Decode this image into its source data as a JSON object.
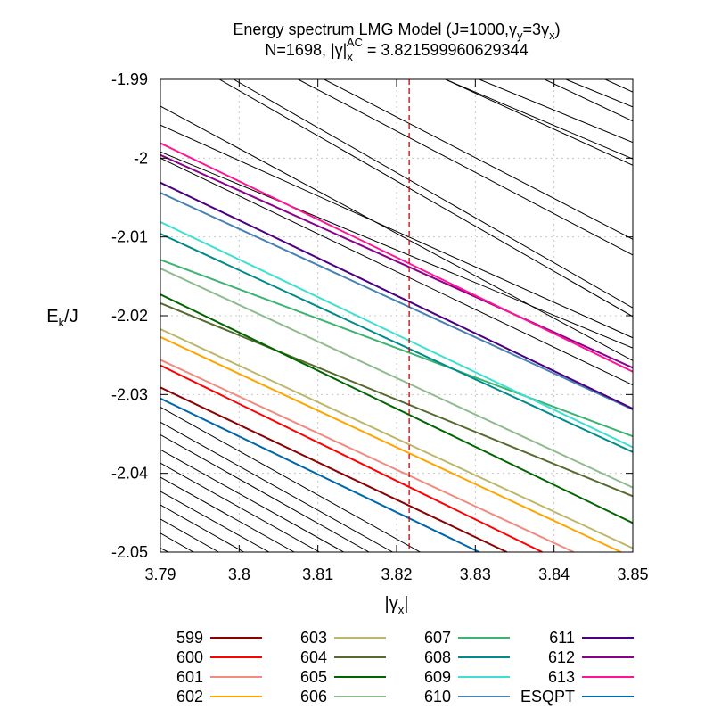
{
  "chart_data": {
    "type": "line",
    "title_line1_parts": [
      "Energy spectrum LMG Model (J=1000,γ",
      "y",
      "=3γ",
      "x",
      ")"
    ],
    "title_line2_parts": [
      "N=1698, |γ|",
      "x",
      "AC",
      " = 3.821599960629344"
    ],
    "xlabel_parts": [
      "|γ",
      "x",
      "|"
    ],
    "ylabel_parts": [
      "E",
      "k",
      "/J"
    ],
    "xlim": [
      3.79,
      3.85
    ],
    "ylim": [
      -2.05,
      -1.99
    ],
    "xticks": [
      3.79,
      3.8,
      3.81,
      3.82,
      3.83,
      3.84,
      3.85
    ],
    "xtick_labels": [
      "3.79",
      "3.8",
      "3.81",
      "3.82",
      "3.83",
      "3.84",
      "3.85"
    ],
    "yticks": [
      -1.99,
      -2,
      -2.01,
      -2.02,
      -2.03,
      -2.04,
      -2.05
    ],
    "ytick_labels": [
      "-1.99",
      "-2",
      "-2.01",
      "-2.02",
      "-2.03",
      "-2.04",
      "-2.05"
    ],
    "grid": true,
    "vline_x": 3.821599960629344,
    "vline_color": "#cc0000",
    "legend_position": "bottom",
    "legend_columns": 4,
    "series": [
      {
        "name": "599",
        "color": "#8b0000",
        "x": [
          3.79,
          3.834
        ],
        "y": [
          -2.0291,
          -2.05
        ]
      },
      {
        "name": "600",
        "color": "#ff0000",
        "x": [
          3.79,
          3.8385
        ],
        "y": [
          -2.0263,
          -2.05
        ]
      },
      {
        "name": "601",
        "color": "#f08c80",
        "x": [
          3.79,
          3.8425
        ],
        "y": [
          -2.0256,
          -2.05
        ]
      },
      {
        "name": "602",
        "color": "#ffa500",
        "x": [
          3.79,
          3.8485
        ],
        "y": [
          -2.0227,
          -2.05
        ]
      },
      {
        "name": "603",
        "color": "#bdb76b",
        "x": [
          3.79,
          3.85
        ],
        "y": [
          -2.0217,
          -2.0495
        ]
      },
      {
        "name": "604",
        "color": "#556b2f",
        "x": [
          3.79,
          3.85
        ],
        "y": [
          -2.0184,
          -2.0429
        ]
      },
      {
        "name": "605",
        "color": "#006400",
        "x": [
          3.79,
          3.85
        ],
        "y": [
          -2.0173,
          -2.0463
        ]
      },
      {
        "name": "606",
        "color": "#8fbc8f",
        "x": [
          3.79,
          3.85
        ],
        "y": [
          -2.014,
          -2.0418
        ]
      },
      {
        "name": "607",
        "color": "#3cb371",
        "x": [
          3.79,
          3.85
        ],
        "y": [
          -2.0129,
          -2.0353
        ]
      },
      {
        "name": "608",
        "color": "#008b8b",
        "x": [
          3.79,
          3.85
        ],
        "y": [
          -2.0096,
          -2.0373
        ]
      },
      {
        "name": "609",
        "color": "#40e0d0",
        "x": [
          3.79,
          3.85
        ],
        "y": [
          -2.0081,
          -2.0367
        ]
      },
      {
        "name": "610",
        "color": "#4682b4",
        "x": [
          3.79,
          3.85
        ],
        "y": [
          -2.0044,
          -2.0319
        ]
      },
      {
        "name": "611",
        "color": "#4b0082",
        "x": [
          3.79,
          3.85
        ],
        "y": [
          -2.0031,
          -2.0318
        ]
      },
      {
        "name": "612",
        "color": "#8b008b",
        "x": [
          3.79,
          3.85
        ],
        "y": [
          -1.9996,
          -2.0266
        ]
      },
      {
        "name": "613",
        "color": "#ff1493",
        "x": [
          3.79,
          3.85
        ],
        "y": [
          -1.9981,
          -2.0271
        ]
      },
      {
        "name": "ESQPT",
        "color": "#0066aa",
        "x": [
          3.79,
          3.8305
        ],
        "y": [
          -2.0305,
          -2.05
        ]
      }
    ],
    "background_levels": {
      "color": "#000000",
      "lines": [
        {
          "x": [
            3.79,
            3.823
          ],
          "y": [
            -2.0316,
            -2.05
          ]
        },
        {
          "x": [
            3.79,
            3.8195
          ],
          "y": [
            -2.0335,
            -2.05
          ]
        },
        {
          "x": [
            3.79,
            3.8165
          ],
          "y": [
            -2.0351,
            -2.05
          ]
        },
        {
          "x": [
            3.79,
            3.8133
          ],
          "y": [
            -2.037,
            -2.05
          ]
        },
        {
          "x": [
            3.79,
            3.8102
          ],
          "y": [
            -2.0387,
            -2.05
          ]
        },
        {
          "x": [
            3.79,
            3.807
          ],
          "y": [
            -2.0405,
            -2.05
          ]
        },
        {
          "x": [
            3.79,
            3.8038
          ],
          "y": [
            -2.0423,
            -2.05
          ]
        },
        {
          "x": [
            3.79,
            3.8006
          ],
          "y": [
            -2.044,
            -2.05
          ]
        },
        {
          "x": [
            3.79,
            3.7974
          ],
          "y": [
            -2.0458,
            -2.05
          ]
        },
        {
          "x": [
            3.79,
            3.7942
          ],
          "y": [
            -2.0476,
            -2.05
          ]
        },
        {
          "x": [
            3.79,
            3.791
          ],
          "y": [
            -2.0495,
            -2.05
          ]
        },
        {
          "x": [
            3.7975,
            3.85
          ],
          "y": [
            -1.99,
            -2.0201
          ]
        },
        {
          "x": [
            3.7993,
            3.85
          ],
          "y": [
            -1.99,
            -2.019
          ]
        },
        {
          "x": [
            3.79,
            3.85
          ],
          "y": [
            -1.9934,
            -2.0257
          ]
        },
        {
          "x": [
            3.79,
            3.85
          ],
          "y": [
            -1.9958,
            -2.0228
          ]
        },
        {
          "x": [
            3.79,
            3.85
          ],
          "y": [
            -2.0,
            -2.0288
          ]
        },
        {
          "x": [
            3.79,
            3.85
          ],
          "y": [
            -2.0096,
            -2.0373
          ]
        },
        {
          "x": [
            3.8262,
            3.85
          ],
          "y": [
            -1.99,
            -2.0001
          ]
        },
        {
          "x": [
            3.8305,
            3.85
          ],
          "y": [
            -1.99,
            -1.998
          ]
        },
        {
          "x": [
            3.8075,
            3.85
          ],
          "y": [
            -1.99,
            -2.0123
          ]
        },
        {
          "x": [
            3.8108,
            3.85
          ],
          "y": [
            -1.99,
            -2.0103
          ]
        },
        {
          "x": [
            3.8262,
            3.85
          ],
          "y": [
            -1.99,
            -2.0009
          ]
        },
        {
          "x": [
            3.8415,
            3.85
          ],
          "y": [
            -1.99,
            -1.9935
          ]
        },
        {
          "x": [
            3.8465,
            3.85
          ],
          "y": [
            -1.99,
            -1.9916
          ]
        },
        {
          "x": [
            3.8388,
            3.85
          ],
          "y": [
            -1.99,
            -1.9953
          ]
        },
        {
          "x": [
            3.79,
            3.85
          ],
          "y": [
            -1.9992,
            -2.0241
          ]
        }
      ]
    }
  }
}
